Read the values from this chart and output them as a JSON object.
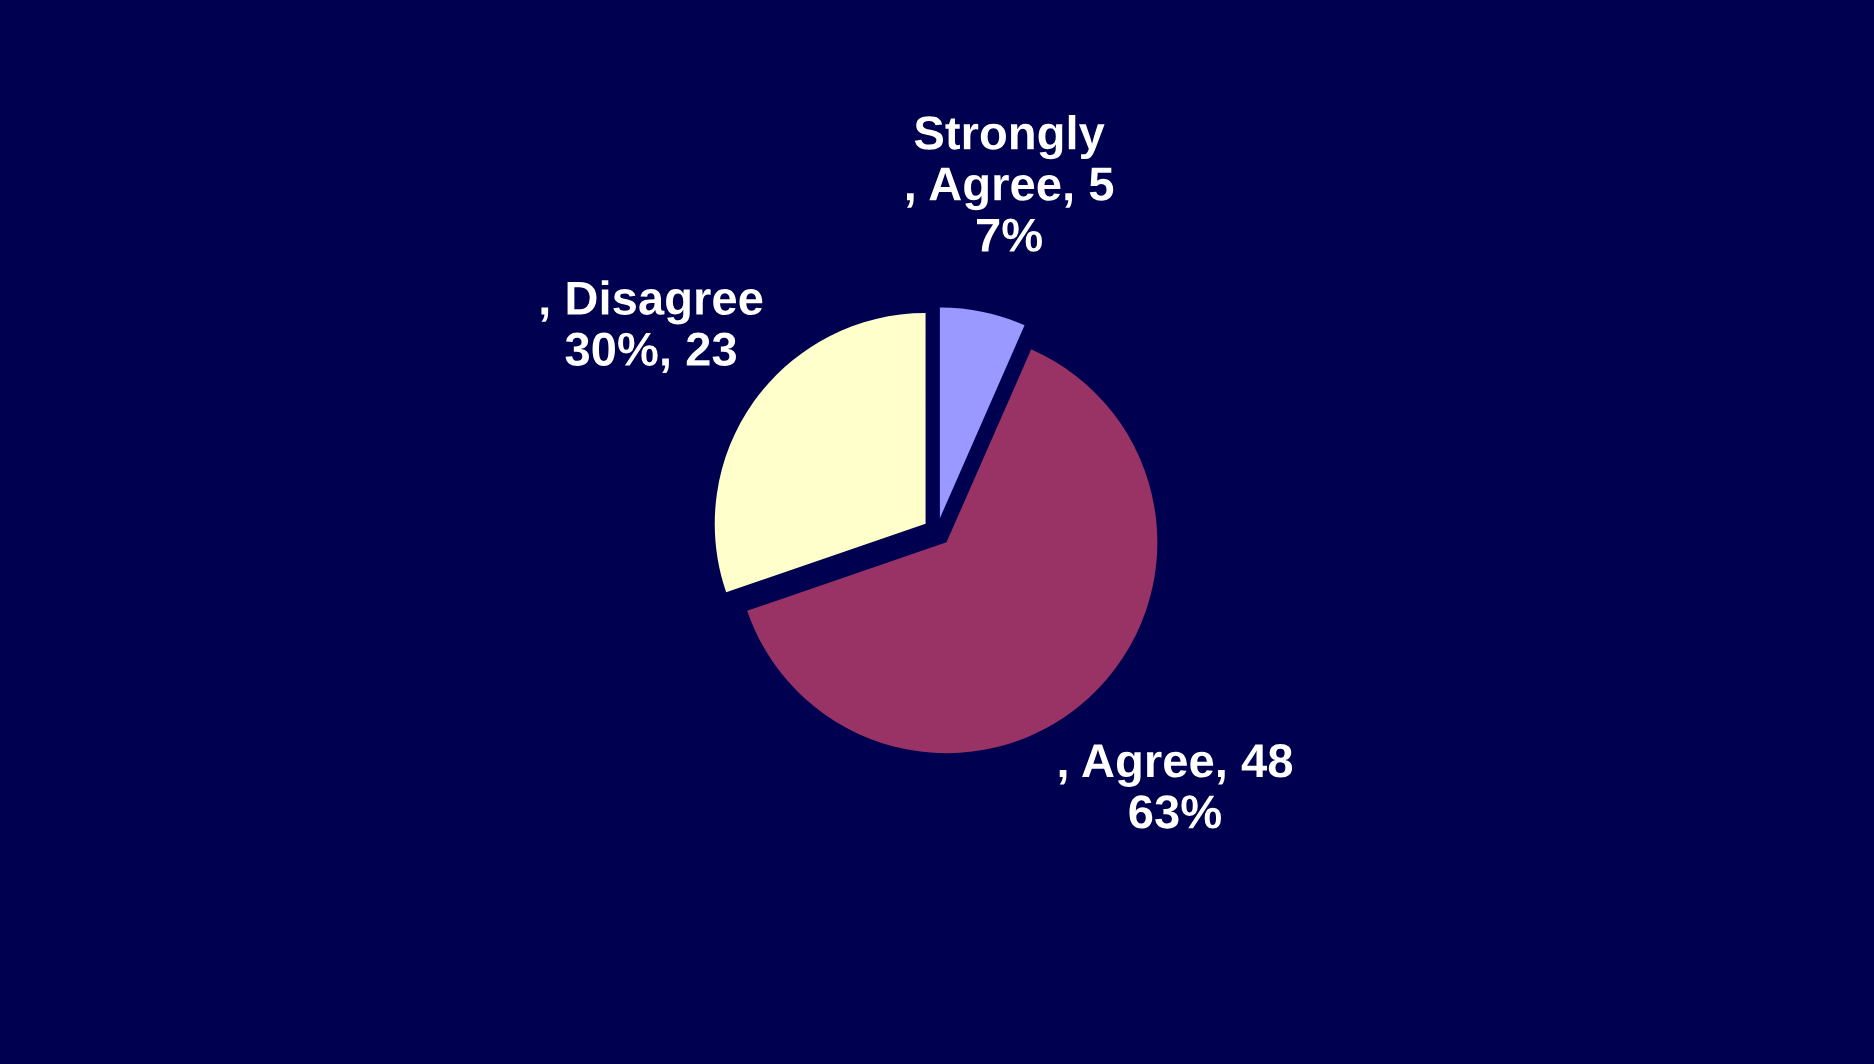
{
  "chart_data": {
    "type": "pie",
    "categories": [
      null,
      null,
      null
    ],
    "values": [
      5,
      48,
      23
    ],
    "colors": [
      "#9999ff",
      "#993366",
      "#ffffcc"
    ],
    "value_labels": [
      "Strongly\n, Agree, 5\n7%",
      ", Agree, 48\n63%",
      ", Disagree\n30%, 23"
    ]
  }
}
